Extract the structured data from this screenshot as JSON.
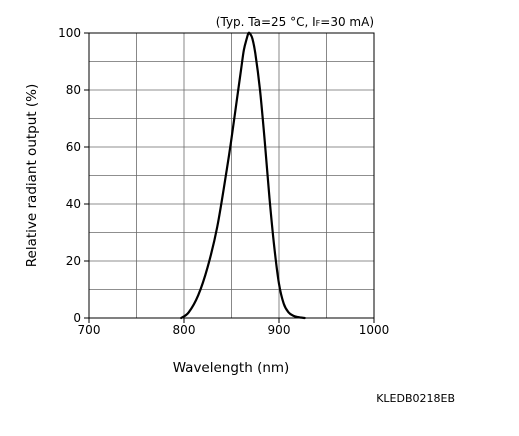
{
  "chart_data": {
    "type": "line",
    "title": "",
    "condition": {
      "prefix": "(Typ. Ta=25 °C, I",
      "subscript": "F",
      "suffix": "=30 mA)"
    },
    "xlabel": "Wavelength (nm)",
    "ylabel": "Relative radiant output (%)",
    "xlim": [
      700,
      1000
    ],
    "ylim": [
      0,
      100
    ],
    "x_ticks": [
      700,
      800,
      900,
      1000
    ],
    "x_tick_labels": [
      "700",
      "800",
      "900",
      "1000"
    ],
    "y_ticks": [
      0,
      20,
      40,
      60,
      80,
      100
    ],
    "y_tick_labels": [
      "0",
      "20",
      "40",
      "60",
      "80",
      "100"
    ],
    "x_grid": [
      750,
      800,
      850,
      900,
      950
    ],
    "y_grid": [
      10,
      20,
      30,
      40,
      50,
      60,
      70,
      80,
      90
    ],
    "grid": true,
    "series": [
      {
        "x": [
          797,
          805,
          815,
          825,
          835,
          845,
          850,
          855,
          860,
          863,
          866,
          868,
          870,
          872,
          875,
          880,
          885,
          890,
          895,
          900,
          905,
          910,
          915,
          920,
          927
        ],
        "y": [
          0,
          2,
          8,
          18,
          32,
          52,
          63,
          75,
          87,
          94,
          98,
          100,
          99.5,
          98,
          93,
          80,
          62,
          42,
          25,
          12,
          5,
          2,
          0.8,
          0.3,
          0
        ]
      }
    ]
  },
  "document_code": "KLEDB0218EB"
}
